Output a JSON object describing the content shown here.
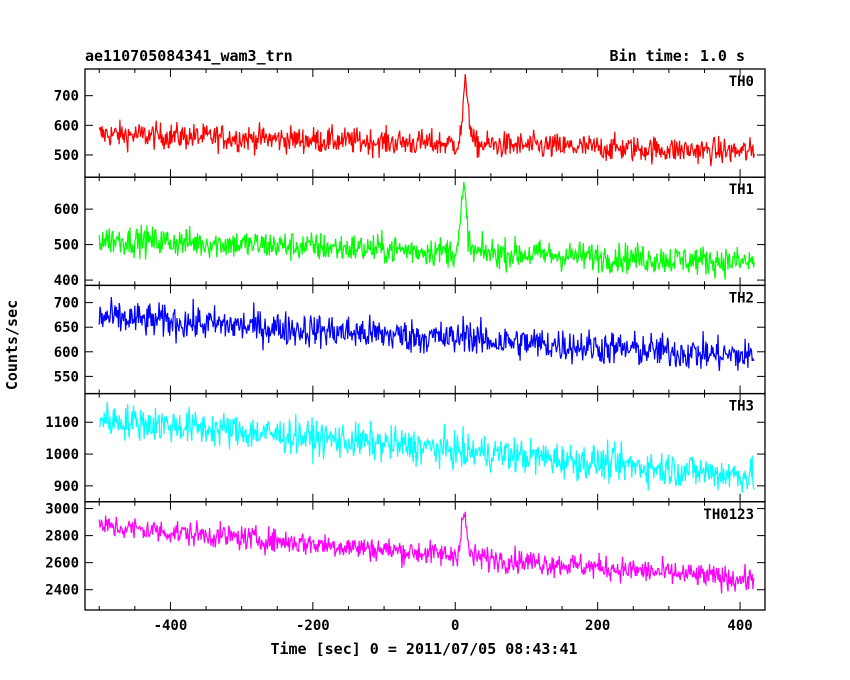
{
  "header": {
    "title": "ae110705084341_wam3_trn",
    "bin_time": "Bin time: 1.0 s"
  },
  "chart_data": {
    "type": "line",
    "title": "ae110705084341_wam3_trn",
    "subtitle": "Bin time: 1.0 s",
    "xlabel": "Time [sec] 0 = 2011/07/05 08:43:41",
    "ylabel": "Counts/sec",
    "xlim": [
      -520,
      435
    ],
    "xticks": [
      -400,
      -200,
      0,
      200,
      400
    ],
    "grid": false,
    "panels": [
      {
        "name": "TH0",
        "color": "#ff0000",
        "ylim": [
          425,
          790
        ],
        "yticks": [
          500,
          600,
          700
        ],
        "series": {
          "start_level": 570,
          "end_level": 510,
          "noise": 32,
          "peak_time": 15,
          "peak_value": 770
        }
      },
      {
        "name": "TH1",
        "color": "#00ff00",
        "ylim": [
          385,
          690
        ],
        "yticks": [
          400,
          500,
          600
        ],
        "series": {
          "start_level": 515,
          "end_level": 450,
          "noise": 30,
          "peak_time": 12,
          "peak_value": 680
        }
      },
      {
        "name": "TH2",
        "color": "#0000ff",
        "ylim": [
          515,
          735
        ],
        "yticks": [
          550,
          600,
          650,
          700
        ],
        "series": {
          "start_level": 670,
          "end_level": 590,
          "noise": 25,
          "peak_time": 15,
          "peak_value": 650
        }
      },
      {
        "name": "TH3",
        "color": "#00ffff",
        "ylim": [
          850,
          1190
        ],
        "yticks": [
          900,
          1000,
          1100
        ],
        "series": {
          "start_level": 1110,
          "end_level": 930,
          "noise": 40,
          "peak_time": 15,
          "peak_value": 1000
        }
      },
      {
        "name": "TH0123",
        "color": "#ff00ff",
        "ylim": [
          2250,
          3050
        ],
        "yticks": [
          2400,
          2600,
          2800,
          3000
        ],
        "series": {
          "start_level": 2870,
          "end_level": 2470,
          "noise": 65,
          "peak_time": 12,
          "peak_value": 3000
        }
      }
    ]
  }
}
